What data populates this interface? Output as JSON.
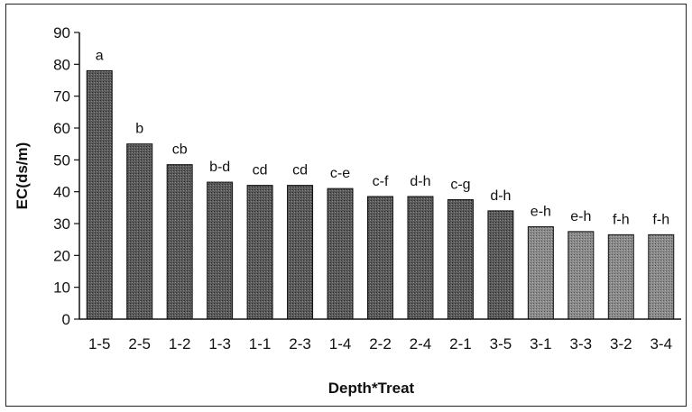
{
  "chart_data": {
    "type": "bar",
    "title": "",
    "xlabel": "Depth*Treat",
    "ylabel": "EC(ds/m)",
    "ylim": [
      0,
      90
    ],
    "yticks": [
      0,
      10,
      20,
      30,
      40,
      50,
      60,
      70,
      80,
      90
    ],
    "categories": [
      "1-5",
      "2-5",
      "1-2",
      "1-3",
      "1-1",
      "2-3",
      "1-4",
      "2-2",
      "2-4",
      "2-1",
      "3-5",
      "3-1",
      "3-3",
      "3-2",
      "3-4"
    ],
    "values": [
      78,
      55,
      48.5,
      43,
      42,
      42,
      41,
      38.5,
      38.5,
      37.5,
      34,
      29,
      27.5,
      26.5,
      26.5
    ],
    "data_labels": [
      "a",
      "b",
      "cb",
      "b-d",
      "cd",
      "cd",
      "c-e",
      "c-f",
      "d-h",
      "c-g",
      "d-h",
      "e-h",
      "e-h",
      "f-h",
      "f-h"
    ],
    "grid": false,
    "legend": "none",
    "colors": {
      "bar_dark": "#4a4a4a",
      "bar_light": "#7a7a7a",
      "axis": "#111111"
    }
  }
}
